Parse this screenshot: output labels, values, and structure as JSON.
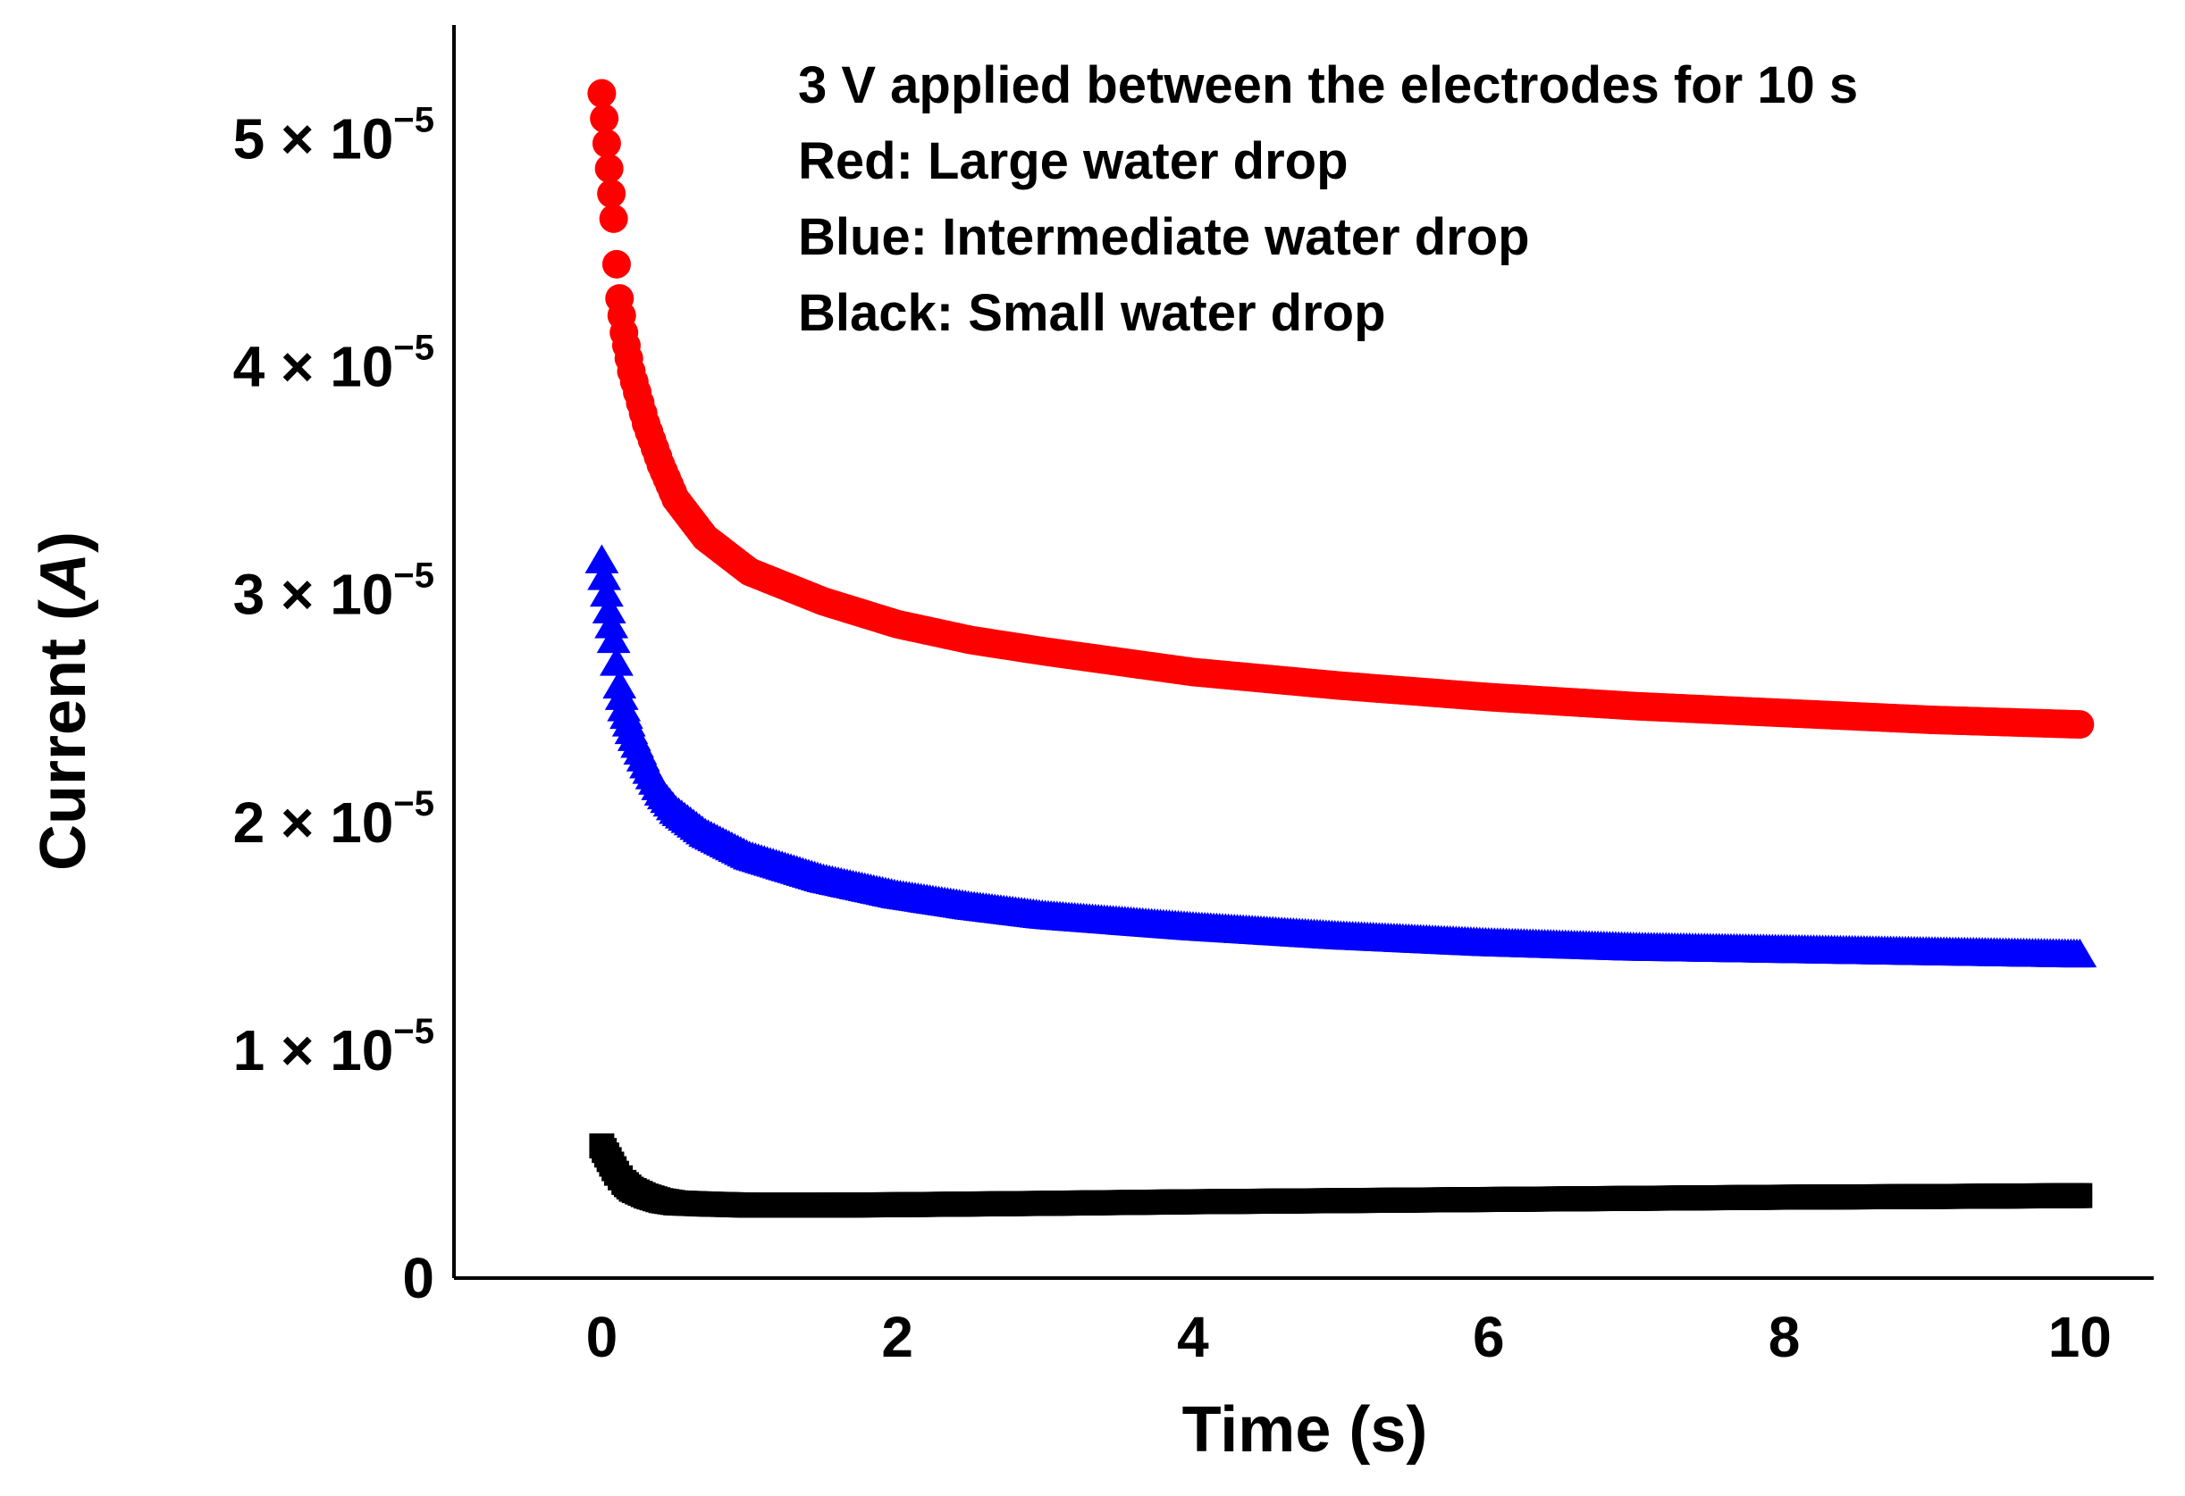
{
  "chart_data": {
    "type": "scatter",
    "xlabel": "Time (s)",
    "ylabel_prefix": "Current (",
    "ylabel_unit": "A",
    "ylabel_suffix": ")",
    "xlim": [
      -1,
      10.5
    ],
    "ylim": [
      0,
      5.5e-05
    ],
    "x_ticks": [
      {
        "value": 0,
        "label": "0"
      },
      {
        "value": 2,
        "label": "2"
      },
      {
        "value": 4,
        "label": "4"
      },
      {
        "value": 6,
        "label": "6"
      },
      {
        "value": 8,
        "label": "8"
      },
      {
        "value": 10,
        "label": "10"
      }
    ],
    "y_ticks": [
      {
        "value": 0,
        "label": "0",
        "exp": ""
      },
      {
        "value": 1e-05,
        "label": "1 × 10",
        "exp": "−5"
      },
      {
        "value": 2e-05,
        "label": "2 × 10",
        "exp": "−5"
      },
      {
        "value": 3e-05,
        "label": "3 × 10",
        "exp": "−5"
      },
      {
        "value": 4e-05,
        "label": "4 × 10",
        "exp": "−5"
      },
      {
        "value": 5e-05,
        "label": "5 × 10",
        "exp": "−5"
      }
    ],
    "annotations": [
      "3 V applied between the electrodes for 10 s",
      "Red: Large water drop",
      "Blue: Intermediate water drop",
      "Black: Small water drop"
    ],
    "series": [
      {
        "marker": "circle",
        "color": "#ff0000",
        "x": [
          0.0,
          0.05,
          0.08,
          0.1,
          0.12,
          0.15,
          0.2,
          0.3,
          0.4,
          0.5,
          0.7,
          1.0,
          1.5,
          2.0,
          2.5,
          3.0,
          4.0,
          5.0,
          6.0,
          7.0,
          8.0,
          9.0,
          10.0
        ],
        "y": [
          5.2e-05,
          4.87e-05,
          4.65e-05,
          4.45e-05,
          4.3e-05,
          4.15e-05,
          3.98e-05,
          3.75e-05,
          3.57e-05,
          3.42e-05,
          3.25e-05,
          3.1e-05,
          2.97e-05,
          2.87e-05,
          2.8e-05,
          2.75e-05,
          2.66e-05,
          2.6e-05,
          2.55e-05,
          2.51e-05,
          2.48e-05,
          2.45e-05,
          2.43e-05
        ]
      },
      {
        "marker": "triangle",
        "color": "#0000ff",
        "x": [
          0.0,
          0.05,
          0.08,
          0.1,
          0.12,
          0.15,
          0.2,
          0.3,
          0.4,
          0.5,
          0.7,
          1.0,
          1.5,
          2.0,
          2.5,
          3.0,
          4.0,
          5.0,
          6.0,
          7.0,
          8.0,
          9.0,
          10.0
        ],
        "y": [
          3.15e-05,
          2.93e-05,
          2.8e-05,
          2.7e-05,
          2.6e-05,
          2.5e-05,
          2.4e-05,
          2.25e-05,
          2.13e-05,
          2.05e-05,
          1.95e-05,
          1.85e-05,
          1.75e-05,
          1.68e-05,
          1.63e-05,
          1.59e-05,
          1.54e-05,
          1.5e-05,
          1.47e-05,
          1.45e-05,
          1.44e-05,
          1.43e-05,
          1.42e-05
        ]
      },
      {
        "marker": "square",
        "color": "#000000",
        "x": [
          0.0,
          0.05,
          0.1,
          0.15,
          0.2,
          0.3,
          0.4,
          0.5,
          0.7,
          1.0,
          1.5,
          2.0,
          3.0,
          4.0,
          5.0,
          6.0,
          7.0,
          8.0,
          9.0,
          10.0
        ],
        "y": [
          5.8e-06,
          5.2e-06,
          4.6e-06,
          4.2e-06,
          3.9e-06,
          3.6e-06,
          3.4e-06,
          3.3e-06,
          3.25e-06,
          3.2e-06,
          3.2e-06,
          3.22e-06,
          3.28e-06,
          3.35e-06,
          3.4e-06,
          3.45e-06,
          3.5e-06,
          3.55e-06,
          3.58e-06,
          3.62e-06
        ]
      }
    ]
  }
}
